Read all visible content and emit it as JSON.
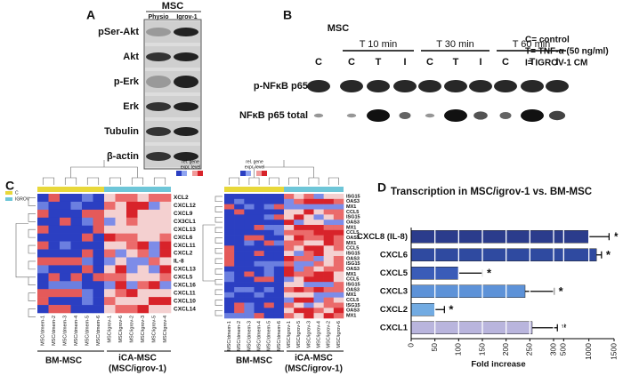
{
  "panel_a": {
    "label": "A",
    "header": "MSC",
    "lanes": [
      "Physio",
      "Igrov-1"
    ],
    "rows": [
      "pSer-Akt",
      "Akt",
      "p-Erk",
      "Erk",
      "Tubulin",
      "β-actin"
    ]
  },
  "panel_b": {
    "label": "B",
    "header": "MSC",
    "groups": [
      "T 10 min",
      "T 30 min",
      "T 60 min"
    ],
    "lanes": [
      "C",
      "C",
      "T",
      "I",
      "C",
      "T",
      "I",
      "C",
      "T",
      "I"
    ],
    "rows": [
      "p-NFκB p65",
      "NFκB p65 total"
    ],
    "key": [
      "C= control",
      "T= TNF-α (50 ng/ml)",
      "I= IGROV-1 CM"
    ]
  },
  "panel_c": {
    "label": "C",
    "legend_title": [
      "rel. gene",
      "expr. level"
    ],
    "legend_items": [
      "C",
      "IGROV"
    ],
    "heatmaps": [
      {
        "genes": [
          "XCL2",
          "CXCL12",
          "CXCL9",
          "CX3CL1",
          "CXCL13",
          "CXCL6",
          "CXCL11",
          "CXCL2",
          "IL-8",
          "CXCL13",
          "CXCL5",
          "CXCL16",
          "CXCL11",
          "CXCL10",
          "CXCL14"
        ],
        "samples": [
          "MSC/dmem-1",
          "MSC/dmem-2",
          "MSC/dmem-3",
          "MSC/dmem-4",
          "MSC/dmem-5",
          "MSC/dmem-6",
          "MSC/igrov-1",
          "MSC/igrov-6",
          "MSC/igrov-2",
          "MSC/igrov-3",
          "MSC/igrov-5",
          "MSC/igrov-4"
        ],
        "groups": [
          "BM-MSC",
          "iCA-MSC",
          "(MSC/igrov-1)"
        ]
      },
      {
        "genes": [
          "ISG15",
          "OAS3",
          "MX1",
          "CCL5",
          "ISG15",
          "OAS3",
          "MX1",
          "CCL5",
          "OAS3",
          "MX1",
          "CCL5",
          "ISG15",
          "OAS3",
          "ISG15",
          "OAS3",
          "MX1",
          "CCL5",
          "ISG15",
          "OAS3",
          "MX1",
          "CCL5",
          "ISG15",
          "OAS3",
          "MX1"
        ],
        "samples": [
          "MSC/dmem-1",
          "MSC/dmem-2",
          "MSC/dmem-3",
          "MSC/dmem-4",
          "MSC/dmem-5",
          "MSC/dmem-6",
          "MSC/igrov-1",
          "MSC/igrov-5",
          "MSC/igrov-3",
          "MSC/igrov-4",
          "MSC/igrov-2",
          "MSC/igrov-6"
        ],
        "groups": [
          "BM-MSC",
          "iCA-MSC",
          "(MSC/igrov-1)"
        ]
      }
    ]
  },
  "chart_data": {
    "type": "bar",
    "orientation": "horizontal",
    "panel_label": "D",
    "title": "Transcription in MSC/igrov-1 vs. BM-MSC",
    "x_label": "Fold increase",
    "categories": [
      "CXCL8 (IL-8)",
      "CXCL6",
      "CXCL5",
      "CXCL3",
      "CXCL2",
      "CXCL1"
    ],
    "values": [
      1000,
      1150,
      100,
      240,
      50,
      255
    ],
    "errors": [
      400,
      100,
      50,
      70,
      20,
      120
    ],
    "colors": [
      "#2b3c8c",
      "#2f4aa0",
      "#3a5cb8",
      "#5d92d8",
      "#72abe2",
      "#b9b5dd"
    ],
    "annotations": [
      "*",
      "*",
      "*",
      "*",
      "*",
      "*"
    ],
    "xlim": [
      0,
      1500
    ],
    "xbreak": 300,
    "xticks": [
      0,
      50,
      100,
      150,
      200,
      250,
      300,
      500,
      1000,
      1500
    ],
    "grid": true
  }
}
